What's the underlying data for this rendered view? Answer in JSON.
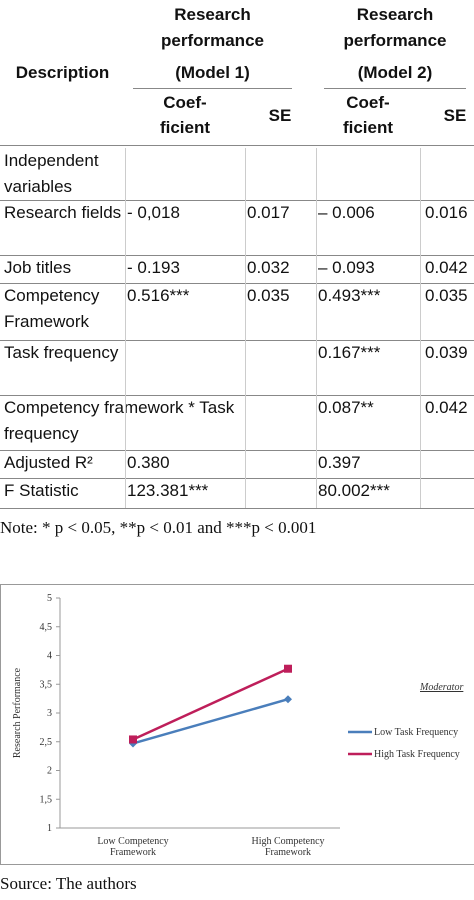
{
  "table": {
    "header": {
      "description": "Description",
      "group_title": "Research performance",
      "models": [
        "(Model 1)",
        "(Model 2)"
      ],
      "coef_lines": [
        "Coef-",
        "ficient"
      ],
      "se": "SE"
    },
    "rows": [
      [
        "Independent variables",
        null,
        null,
        null,
        null
      ],
      [
        "Research fields",
        "- 0,018",
        "0.017",
        "– 0.006",
        "0.016"
      ],
      [
        "Job titles",
        "- 0.193",
        "0.032",
        "– 0.093",
        "0.042"
      ],
      [
        "Competency Framework",
        "0.516***",
        "0.035",
        "0.493***",
        "0.035"
      ],
      [
        "Task frequency",
        null,
        null,
        "0.167***",
        "0.039"
      ],
      [
        "Competency framework * Task frequency",
        null,
        null,
        "0.087**",
        "0.042"
      ],
      [
        "Adjusted R²",
        "0.380",
        null,
        "0.397",
        null
      ],
      [
        "F Statistic",
        "123.381***",
        null,
        "80.002***",
        null
      ]
    ]
  },
  "note": "Note: * p < 0.05, **p < 0.01 and ***p < 0.001",
  "chart_data": {
    "type": "line",
    "y_label": "Research Performance",
    "categories": [
      "Low Competency Framework",
      "High Competency Framework"
    ],
    "legend_title": "Moderator",
    "series": [
      {
        "name": "Low Task Frequency",
        "color": "#4a7ebb",
        "values": [
          2.47,
          3.24
        ]
      },
      {
        "name": "High Task Frequency",
        "color": "#be1e5a",
        "values": [
          2.54,
          3.77
        ]
      }
    ],
    "ylim": [
      1,
      5
    ],
    "yticks": [
      1,
      {
        "value": 1.5,
        "label": "1,5"
      },
      2,
      {
        "value": 2.5,
        "label": "2,5"
      },
      3,
      {
        "value": 3.5,
        "label": "3,5"
      },
      4,
      {
        "value": 4.5,
        "label": "4,5"
      },
      5
    ]
  },
  "source": "Source: The authors"
}
